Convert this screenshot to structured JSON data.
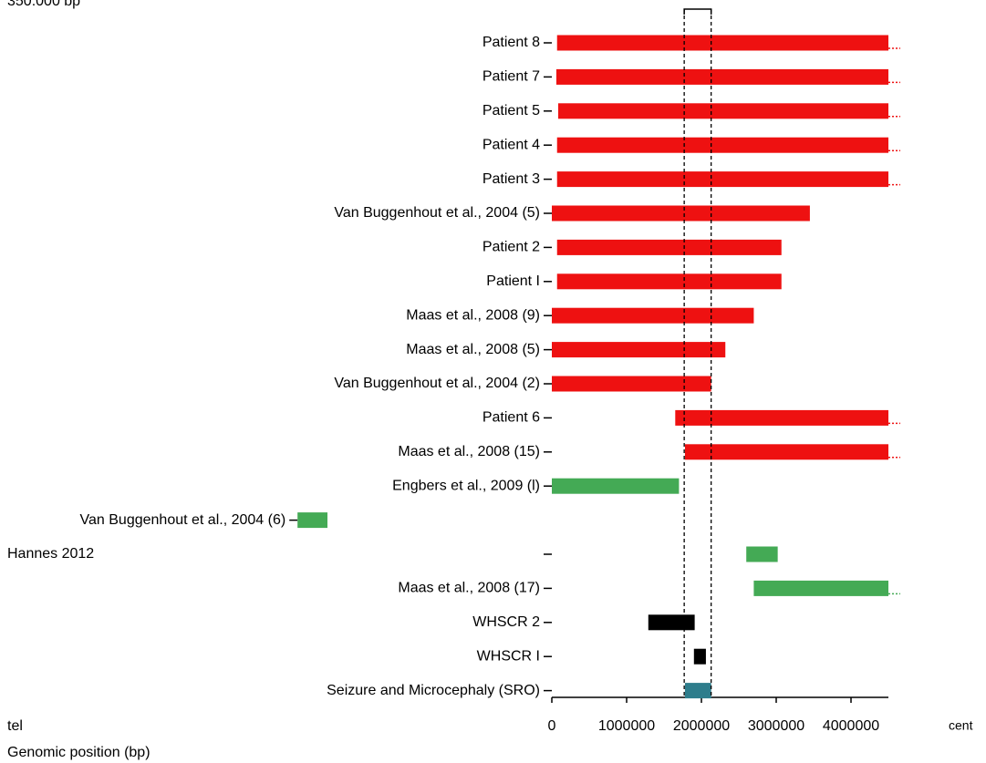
{
  "chart_data": {
    "type": "range_bar",
    "note_top": "350.000 bp",
    "left_end_label": "tel",
    "right_end_label": "cent",
    "x_label": "Genomic position (bp)",
    "xlim": [
      0,
      4500000
    ],
    "xticks": [
      0,
      1000000,
      2000000,
      3000000,
      4000000
    ],
    "region": [
      1770000,
      2130000
    ],
    "bars": [
      {
        "label": "Patient 8",
        "start": 70000,
        "end": 4500000,
        "color": "#ee1111"
      },
      {
        "label": "Patient 7",
        "start": 60000,
        "end": 4500000,
        "color": "#ee1111"
      },
      {
        "label": "Patient 5",
        "start": 85000,
        "end": 4500000,
        "color": "#ee1111"
      },
      {
        "label": "Patient 4",
        "start": 70000,
        "end": 4500000,
        "color": "#ee1111"
      },
      {
        "label": "Patient 3",
        "start": 70000,
        "end": 4500000,
        "color": "#ee1111"
      },
      {
        "label": "Van Buggenhout et al., 2004 (5)",
        "start": 0,
        "end": 3450000,
        "color": "#ee1111"
      },
      {
        "label": "Patient 2",
        "start": 70000,
        "end": 3070000,
        "color": "#ee1111"
      },
      {
        "label": "Patient I",
        "start": 70000,
        "end": 3070000,
        "color": "#ee1111"
      },
      {
        "label": "Maas et al., 2008 (9)",
        "start": 0,
        "end": 2700000,
        "color": "#ee1111"
      },
      {
        "label": "Maas et al., 2008 (5)",
        "start": 0,
        "end": 2320000,
        "color": "#ee1111"
      },
      {
        "label": "Van Buggenhout et al., 2004 (2)",
        "start": 0,
        "end": 2130000,
        "color": "#ee1111"
      },
      {
        "label": "Patient 6",
        "start": 1650000,
        "end": 4500000,
        "color": "#ee1111"
      },
      {
        "label": "Maas et al., 2008 (15)",
        "start": 1780000,
        "end": 4500000,
        "color": "#ee1111"
      },
      {
        "label": "Engbers et al., 2009 (l)",
        "start": 0,
        "end": 1700000,
        "color": "#44aa55"
      },
      {
        "label": "Van Buggenhout et al., 2004 (6)",
        "start": -3400000,
        "end": -3000000,
        "color": "#44aa55"
      },
      {
        "label": "Hannes 2012",
        "start": 2600000,
        "end": 3020000,
        "color": "#44aa55"
      },
      {
        "label": "Maas et al., 2008 (17)",
        "start": 2700000,
        "end": 4500000,
        "color": "#44aa55"
      },
      {
        "label": "WHSCR 2",
        "start": 1290000,
        "end": 1910000,
        "color": "#000000"
      },
      {
        "label": "WHSCR I",
        "start": 1900000,
        "end": 2060000,
        "color": "#000000"
      },
      {
        "label": "Seizure and Microcephaly (SRO)",
        "start": 1780000,
        "end": 2130000,
        "color": "#2e7d8c"
      }
    ]
  }
}
